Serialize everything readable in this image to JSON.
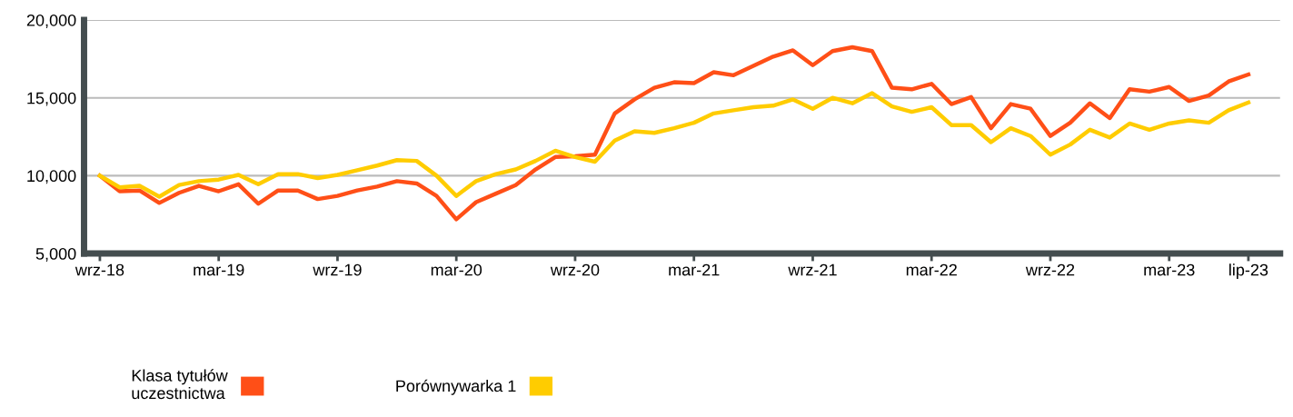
{
  "chart_data": {
    "type": "line",
    "categories": [
      "wrz-18",
      null,
      null,
      null,
      null,
      null,
      "mar-19",
      null,
      null,
      null,
      null,
      null,
      "wrz-19",
      null,
      null,
      null,
      null,
      null,
      "mar-20",
      null,
      null,
      null,
      null,
      null,
      "wrz-20",
      null,
      null,
      null,
      null,
      null,
      "mar-21",
      null,
      null,
      null,
      null,
      null,
      "wrz-21",
      null,
      null,
      null,
      null,
      null,
      "mar-22",
      null,
      null,
      null,
      null,
      null,
      "wrz-22",
      null,
      null,
      null,
      null,
      null,
      "mar-23",
      null,
      null,
      null,
      "lip-23"
    ],
    "series": [
      {
        "name": "Klasa tytułów\nuczestnictwa",
        "color": "#ff4f17",
        "values": [
          10000,
          9000,
          9050,
          8250,
          8900,
          9350,
          9000,
          9450,
          8200,
          9050,
          9050,
          8500,
          8700,
          9050,
          9300,
          9650,
          9500,
          8700,
          7200,
          8300,
          8850,
          9400,
          10400,
          11200,
          11250,
          11350,
          14000,
          14900,
          15650,
          16000,
          15950,
          16650,
          16450,
          17050,
          17650,
          18050,
          17100,
          18000,
          18250,
          18000,
          15650,
          15550,
          15900,
          14600,
          15050,
          13050,
          14600,
          14300,
          12550,
          13400,
          14650,
          13700,
          15550,
          15400,
          15700,
          14800,
          15150,
          16050,
          16500
        ]
      },
      {
        "name": "Porównywarka 1",
        "color": "#ffcc00",
        "values": [
          10000,
          9250,
          9350,
          8650,
          9400,
          9650,
          9750,
          10050,
          9450,
          10100,
          10100,
          9850,
          10050,
          10350,
          10650,
          11000,
          10950,
          10000,
          8700,
          9650,
          10100,
          10400,
          10950,
          11600,
          11200,
          10900,
          12250,
          12850,
          12750,
          13050,
          13400,
          14000,
          14200,
          14400,
          14500,
          14900,
          14300,
          15000,
          14650,
          15300,
          14450,
          14100,
          14400,
          13250,
          13250,
          12150,
          13050,
          12550,
          11350,
          12000,
          12950,
          12450,
          13350,
          12950,
          13350,
          13550,
          13400,
          14200,
          14700
        ]
      }
    ],
    "ylim": [
      5000,
      20000
    ],
    "yticks": [
      {
        "value": 5000,
        "label": "5,000"
      },
      {
        "value": 10000,
        "label": "10,000"
      },
      {
        "value": 15000,
        "label": "15,000"
      },
      {
        "value": 20000,
        "label": "20,000"
      }
    ],
    "grid": "y",
    "legend": "bottom left",
    "marker": "none",
    "line_style": "solid"
  }
}
